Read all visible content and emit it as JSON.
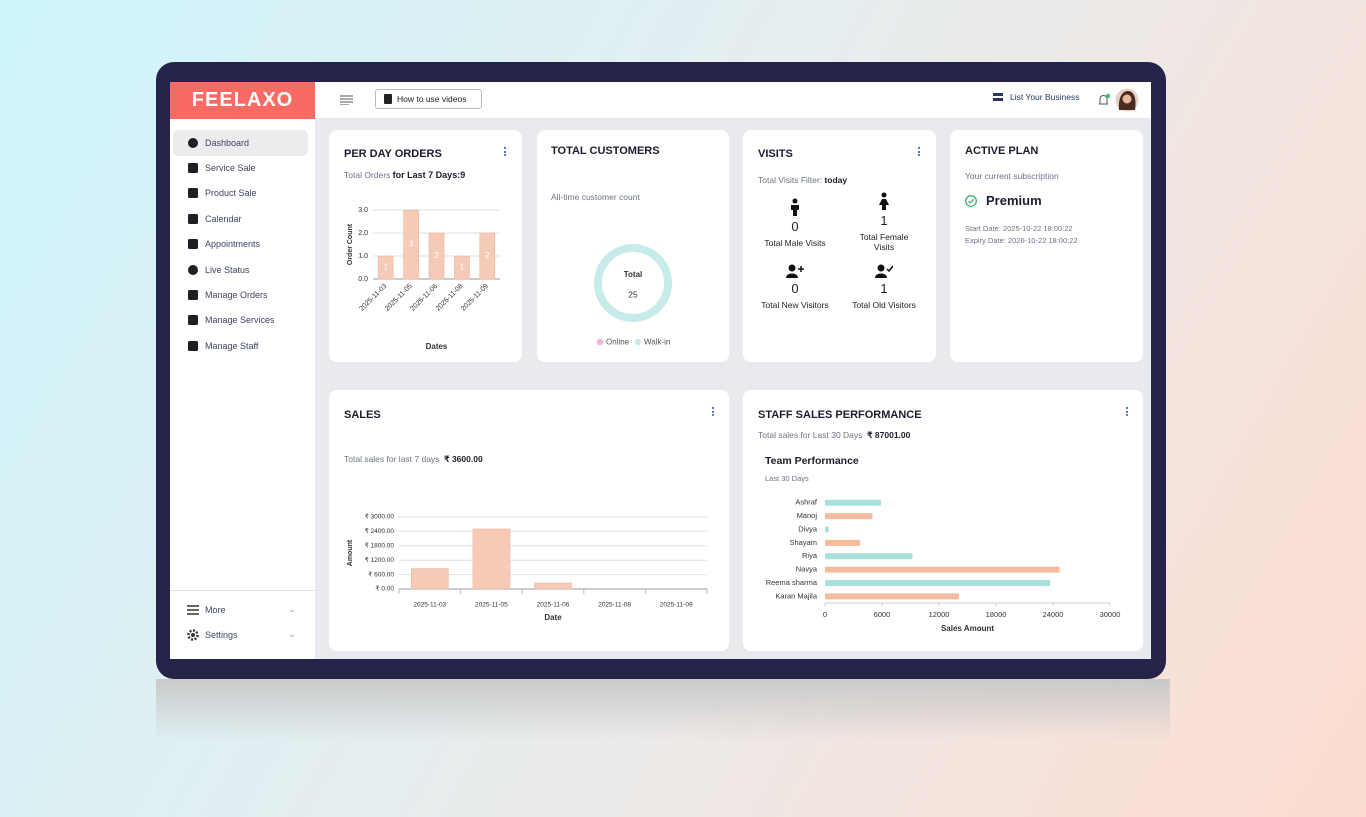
{
  "brand": "FEELAXO",
  "header": {
    "how_to": "How to use videos",
    "list_business": "List Your Business"
  },
  "sidebar": {
    "items": [
      "Dashboard",
      "Service Sale",
      "Product Sale",
      "Calendar",
      "Appointments",
      "Live Status",
      "Manage Orders",
      "Manage Services",
      "Manage Staff"
    ],
    "footer": [
      "More",
      "Settings"
    ]
  },
  "visits": {
    "title": "VISITS",
    "filter_label": "Total Visits Filter:",
    "filter": "today",
    "stats": [
      {
        "value": "0",
        "label": "Total Male Visits"
      },
      {
        "value": "1",
        "label": "Total Female Visits"
      },
      {
        "value": "0",
        "label": "Total New Visitors"
      },
      {
        "value": "1",
        "label": "Total Old Visitors"
      }
    ]
  },
  "plan": {
    "title": "ACTIVE PLAN",
    "subtitle": "Your current subscription",
    "name": "Premium",
    "start": "Start Date: 2025-10-22 18:00:22",
    "expiry": "Expiry Date: 2026-10-22 18:00:22"
  },
  "chart_data": [
    {
      "type": "bar",
      "title": "PER DAY ORDERS",
      "subtitle": "Total Orders",
      "subtitle_value": "for Last 7 Days:9",
      "categories": [
        "2025-11-03",
        "2025-11-05",
        "2025-11-06",
        "2025-11-08",
        "2025-11-09"
      ],
      "values": [
        1,
        3,
        2,
        1,
        2
      ],
      "color": "#f5cab7",
      "ylim": [
        0,
        3
      ],
      "yticks": [
        {
          "value": 0,
          "label": "0.0"
        },
        {
          "value": 1,
          "label": "1.0"
        },
        {
          "value": 2,
          "label": "2.0"
        },
        {
          "value": 3,
          "label": "3.0"
        }
      ],
      "ylabel": "Order Count",
      "xlabel": "Dates",
      "grid": true,
      "data_labels": true
    },
    {
      "type": "pie",
      "title": "TOTAL CUSTOMERS",
      "subtitle": "All-time customer count",
      "center_label": "Total",
      "center_value": "25",
      "categories": [
        "Online",
        "Walk-in"
      ],
      "values": [
        0,
        25
      ],
      "colors": [
        "#f0b4e2",
        "#c7ebe8"
      ]
    },
    {
      "type": "bar",
      "title": "SALES",
      "subtitle": "Total sales for last 7 days",
      "subtitle_value": "₹ 3600.00",
      "categories": [
        "2025-11-03",
        "2025-11-05",
        "2025-11-06",
        "2025-11-08",
        "2025-11-09"
      ],
      "values": [
        850,
        2500,
        250,
        0,
        0
      ],
      "color": "#f5cab7",
      "ylim": [
        0,
        3000
      ],
      "yticks": [
        {
          "value": 0,
          "label": "₹ 0.00"
        },
        {
          "value": 600,
          "label": "₹ 600.00"
        },
        {
          "value": 1200,
          "label": "₹ 1200.00"
        },
        {
          "value": 1800,
          "label": "₹ 1800.00"
        },
        {
          "value": 2400,
          "label": "₹ 2400.00"
        },
        {
          "value": 3000,
          "label": "₹ 3000.00"
        }
      ],
      "ylabel": "Amount",
      "xlabel": "Date",
      "grid": true,
      "data_labels": false
    },
    {
      "type": "hbar",
      "title": "STAFF SALES PERFORMANCE",
      "subtitle": "Total sales for Last 30 Days",
      "subtitle_value": "₹ 87001.00",
      "chart_title": "Team Performance",
      "chart_subtitle": "Last 30 Days",
      "categories": [
        "Ashraf",
        "Manoj",
        "Divya",
        "Shayam",
        "Riya",
        "Navya",
        "Reema sharma",
        "Karan Majila"
      ],
      "values": [
        5900,
        5000,
        400,
        3700,
        9200,
        24700,
        23700,
        14100
      ],
      "colors": [
        "#a9e0dc",
        "#f4bb9f",
        "#a9e0dc",
        "#f4bb9f",
        "#a9e0dc",
        "#f4bb9f",
        "#a9e0dc",
        "#f4bb9f"
      ],
      "xlim": [
        0,
        30000
      ],
      "xticks": [
        0,
        6000,
        12000,
        18000,
        24000,
        30000
      ],
      "xlabel": "Sales Amount",
      "grid": false
    }
  ]
}
